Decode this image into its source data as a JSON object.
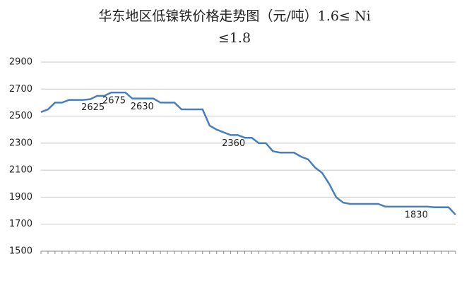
{
  "chart_data": {
    "type": "line",
    "title": [
      "华东地区低镍铁价格走势图（元/吨）1.6≤ Ni",
      "≤1.8"
    ],
    "categories": [
      null,
      null,
      null,
      null,
      null,
      null,
      null,
      null,
      null,
      null,
      null,
      null,
      null,
      null,
      null,
      null,
      null,
      null,
      null,
      null,
      null,
      null,
      null,
      null,
      null,
      null,
      null,
      null,
      null,
      null,
      null,
      null,
      null,
      null,
      null,
      null,
      null,
      null,
      null,
      null,
      null,
      null,
      null,
      null,
      null,
      null,
      null,
      null,
      null,
      null,
      null,
      null,
      null,
      null,
      null,
      null,
      null,
      null,
      null,
      null
    ],
    "series": [
      {
        "name": null,
        "color": "#4a7ebb",
        "values": [
          2530,
          2550,
          2600,
          2600,
          2620,
          2620,
          2620,
          2625,
          2650,
          2650,
          2675,
          2675,
          2675,
          2630,
          2630,
          2630,
          2630,
          2600,
          2600,
          2600,
          2550,
          2550,
          2550,
          2550,
          2430,
          2400,
          2380,
          2360,
          2360,
          2340,
          2340,
          2300,
          2300,
          2240,
          2230,
          2230,
          2230,
          2200,
          2180,
          2120,
          2080,
          2000,
          1900,
          1860,
          1850,
          1850,
          1850,
          1850,
          1850,
          1830,
          1830,
          1830,
          1830,
          1830,
          1830,
          1830,
          1825,
          1825,
          1825,
          1770
        ],
        "value_labels": [
          null,
          null,
          null,
          null,
          null,
          null,
          null,
          "2625",
          null,
          null,
          "2675",
          null,
          null,
          null,
          "2630",
          null,
          null,
          null,
          null,
          null,
          null,
          null,
          null,
          null,
          null,
          null,
          null,
          "2360",
          null,
          null,
          null,
          null,
          null,
          null,
          null,
          null,
          null,
          null,
          null,
          null,
          null,
          null,
          null,
          null,
          null,
          null,
          null,
          null,
          null,
          null,
          null,
          null,
          null,
          "1830",
          null,
          null,
          null,
          null,
          null,
          null
        ]
      }
    ],
    "ylim": [
      1500,
      2900
    ],
    "yticks": [
      1500,
      1700,
      1900,
      2100,
      2300,
      2500,
      2700,
      2900
    ],
    "grid": true
  }
}
